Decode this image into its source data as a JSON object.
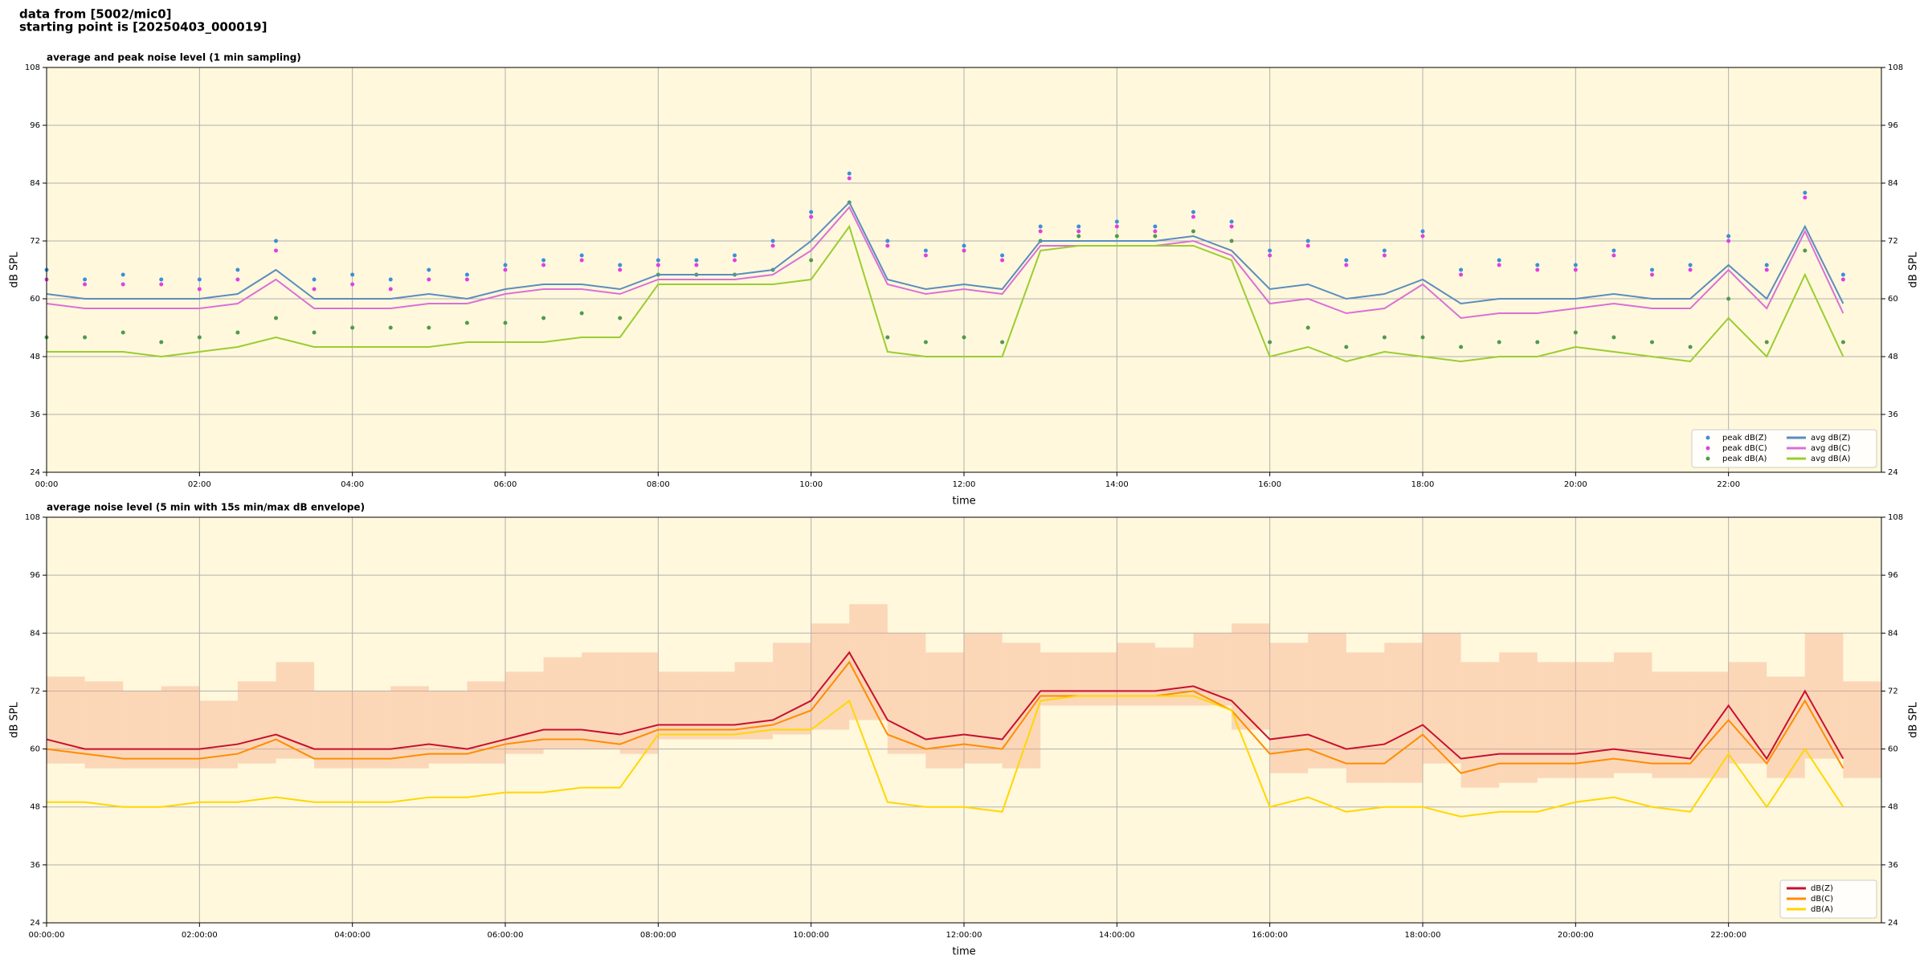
{
  "header": {
    "source": "data from [5002/mic0]",
    "start": "starting point is [20250403_000019]"
  },
  "chart_data": [
    {
      "type": "line",
      "title": "average and peak noise level (1 min sampling)",
      "xlabel": "time",
      "ylabel": "dB SPL",
      "x": [
        0,
        0.5,
        1,
        1.5,
        2,
        2.5,
        3,
        3.5,
        4,
        4.5,
        5,
        5.5,
        6,
        6.5,
        7,
        7.5,
        8,
        8.5,
        9,
        9.5,
        10,
        10.5,
        11,
        11.5,
        12,
        12.5,
        13,
        13.5,
        14,
        14.5,
        15,
        15.5,
        16,
        16.5,
        17,
        17.5,
        18,
        18.5,
        19,
        19.5,
        20,
        20.5,
        21,
        21.5,
        22,
        22.5,
        23,
        23.5
      ],
      "xlim": [
        0,
        24
      ],
      "xticks": [
        {
          "value": 0,
          "label": "00:00"
        },
        {
          "value": 2,
          "label": "02:00"
        },
        {
          "value": 4,
          "label": "04:00"
        },
        {
          "value": 6,
          "label": "06:00"
        },
        {
          "value": 8,
          "label": "08:00"
        },
        {
          "value": 10,
          "label": "10:00"
        },
        {
          "value": 12,
          "label": "12:00"
        },
        {
          "value": 14,
          "label": "14:00"
        },
        {
          "value": 16,
          "label": "16:00"
        },
        {
          "value": 18,
          "label": "18:00"
        },
        {
          "value": 20,
          "label": "20:00"
        },
        {
          "value": 22,
          "label": "22:00"
        }
      ],
      "ylim": [
        24,
        108
      ],
      "yticks": [
        24,
        36,
        48,
        60,
        72,
        84,
        96,
        108
      ],
      "grid": true,
      "legend": "lower right",
      "legend_columns": 2,
      "series": [
        {
          "name": "peak dB(Z)",
          "style": "dots",
          "color": "#3b8fd9",
          "values": [
            66,
            64,
            65,
            64,
            64,
            66,
            72,
            64,
            65,
            64,
            66,
            65,
            67,
            68,
            69,
            67,
            68,
            68,
            69,
            72,
            78,
            86,
            72,
            70,
            71,
            69,
            75,
            75,
            76,
            75,
            78,
            76,
            70,
            72,
            68,
            70,
            74,
            66,
            68,
            67,
            67,
            70,
            66,
            67,
            73,
            67,
            82,
            65
          ]
        },
        {
          "name": "peak dB(C)",
          "style": "dots",
          "color": "#e040e0",
          "values": [
            64,
            63,
            63,
            63,
            62,
            64,
            70,
            62,
            63,
            62,
            64,
            64,
            66,
            67,
            68,
            66,
            67,
            67,
            68,
            71,
            77,
            85,
            71,
            69,
            70,
            68,
            74,
            74,
            75,
            74,
            77,
            75,
            69,
            71,
            67,
            69,
            73,
            65,
            67,
            66,
            66,
            69,
            65,
            66,
            72,
            66,
            81,
            64
          ]
        },
        {
          "name": "peak dB(A)",
          "style": "dots",
          "color": "#4f9a4f",
          "values": [
            52,
            52,
            53,
            51,
            52,
            53,
            56,
            53,
            54,
            54,
            54,
            55,
            55,
            56,
            57,
            56,
            65,
            65,
            65,
            66,
            68,
            80,
            52,
            51,
            52,
            51,
            72,
            73,
            73,
            73,
            74,
            72,
            51,
            54,
            50,
            52,
            52,
            50,
            51,
            51,
            53,
            52,
            51,
            50,
            60,
            51,
            70,
            51
          ]
        },
        {
          "name": "avg dB(Z)",
          "style": "line",
          "color": "#5b8dbf",
          "values": [
            61,
            60,
            60,
            60,
            60,
            61,
            66,
            60,
            60,
            60,
            61,
            60,
            62,
            63,
            63,
            62,
            65,
            65,
            65,
            66,
            72,
            80,
            64,
            62,
            63,
            62,
            72,
            72,
            72,
            72,
            73,
            70,
            62,
            63,
            60,
            61,
            64,
            59,
            60,
            60,
            60,
            61,
            60,
            60,
            67,
            60,
            75,
            59
          ]
        },
        {
          "name": "avg dB(C)",
          "style": "line",
          "color": "#da70d6",
          "values": [
            59,
            58,
            58,
            58,
            58,
            59,
            64,
            58,
            58,
            58,
            59,
            59,
            61,
            62,
            62,
            61,
            64,
            64,
            64,
            65,
            70,
            79,
            63,
            61,
            62,
            61,
            71,
            71,
            71,
            71,
            72,
            69,
            59,
            60,
            57,
            58,
            63,
            56,
            57,
            57,
            58,
            59,
            58,
            58,
            66,
            58,
            74,
            57
          ]
        },
        {
          "name": "avg dB(A)",
          "style": "line",
          "color": "#9acd32",
          "values": [
            49,
            49,
            49,
            48,
            49,
            50,
            52,
            50,
            50,
            50,
            50,
            51,
            51,
            51,
            52,
            52,
            63,
            63,
            63,
            63,
            64,
            75,
            49,
            48,
            48,
            48,
            70,
            71,
            71,
            71,
            71,
            68,
            48,
            50,
            47,
            49,
            48,
            47,
            48,
            48,
            50,
            49,
            48,
            47,
            56,
            48,
            65,
            48
          ]
        }
      ]
    },
    {
      "type": "line",
      "title": "average noise level (5 min with 15s min/max dB envelope)",
      "xlabel": "time",
      "ylabel": "dB SPL",
      "x": [
        0,
        0.5,
        1,
        1.5,
        2,
        2.5,
        3,
        3.5,
        4,
        4.5,
        5,
        5.5,
        6,
        6.5,
        7,
        7.5,
        8,
        8.5,
        9,
        9.5,
        10,
        10.5,
        11,
        11.5,
        12,
        12.5,
        13,
        13.5,
        14,
        14.5,
        15,
        15.5,
        16,
        16.5,
        17,
        17.5,
        18,
        18.5,
        19,
        19.5,
        20,
        20.5,
        21,
        21.5,
        22,
        22.5,
        23,
        23.5
      ],
      "xlim": [
        0,
        24
      ],
      "xticks": [
        {
          "value": 0,
          "label": "00:00:00"
        },
        {
          "value": 2,
          "label": "02:00:00"
        },
        {
          "value": 4,
          "label": "04:00:00"
        },
        {
          "value": 6,
          "label": "06:00:00"
        },
        {
          "value": 8,
          "label": "08:00:00"
        },
        {
          "value": 10,
          "label": "10:00:00"
        },
        {
          "value": 12,
          "label": "12:00:00"
        },
        {
          "value": 14,
          "label": "14:00:00"
        },
        {
          "value": 16,
          "label": "16:00:00"
        },
        {
          "value": 18,
          "label": "18:00:00"
        },
        {
          "value": 20,
          "label": "20:00:00"
        },
        {
          "value": 22,
          "label": "22:00:00"
        }
      ],
      "ylim": [
        24,
        108
      ],
      "yticks": [
        24,
        36,
        48,
        60,
        72,
        84,
        96,
        108
      ],
      "grid": true,
      "legend": "lower right",
      "legend_columns": 1,
      "envelope": {
        "color": "#f4a582",
        "max": [
          75,
          74,
          72,
          73,
          70,
          74,
          78,
          72,
          72,
          73,
          72,
          74,
          76,
          79,
          80,
          80,
          76,
          76,
          78,
          82,
          86,
          90,
          84,
          80,
          84,
          82,
          80,
          80,
          82,
          81,
          84,
          86,
          82,
          84,
          80,
          82,
          84,
          78,
          80,
          78,
          78,
          80,
          76,
          76,
          78,
          75,
          84,
          74
        ],
        "min": [
          57,
          56,
          56,
          56,
          56,
          57,
          58,
          56,
          56,
          56,
          57,
          57,
          59,
          60,
          60,
          59,
          62,
          62,
          62,
          63,
          64,
          66,
          59,
          56,
          57,
          56,
          69,
          69,
          69,
          69,
          69,
          64,
          55,
          56,
          53,
          53,
          57,
          52,
          53,
          54,
          54,
          55,
          54,
          54,
          57,
          54,
          58,
          54
        ]
      },
      "series": [
        {
          "name": "dB(Z)",
          "style": "line",
          "color": "#c8102e",
          "values": [
            62,
            60,
            60,
            60,
            60,
            61,
            63,
            60,
            60,
            60,
            61,
            60,
            62,
            64,
            64,
            63,
            65,
            65,
            65,
            66,
            70,
            80,
            66,
            62,
            63,
            62,
            72,
            72,
            72,
            72,
            73,
            70,
            62,
            63,
            60,
            61,
            65,
            58,
            59,
            59,
            59,
            60,
            59,
            58,
            69,
            58,
            72,
            58
          ]
        },
        {
          "name": "dB(C)",
          "style": "line",
          "color": "#ff8c00",
          "values": [
            60,
            59,
            58,
            58,
            58,
            59,
            62,
            58,
            58,
            58,
            59,
            59,
            61,
            62,
            62,
            61,
            64,
            64,
            64,
            65,
            68,
            78,
            63,
            60,
            61,
            60,
            71,
            71,
            71,
            71,
            72,
            68,
            59,
            60,
            57,
            57,
            63,
            55,
            57,
            57,
            57,
            58,
            57,
            57,
            66,
            57,
            70,
            56
          ]
        },
        {
          "name": "dB(A)",
          "style": "line",
          "color": "#ffd700",
          "values": [
            49,
            49,
            48,
            48,
            49,
            49,
            50,
            49,
            49,
            49,
            50,
            50,
            51,
            51,
            52,
            52,
            63,
            63,
            63,
            64,
            64,
            70,
            49,
            48,
            48,
            47,
            70,
            71,
            71,
            71,
            71,
            68,
            48,
            50,
            47,
            48,
            48,
            46,
            47,
            47,
            49,
            50,
            48,
            47,
            59,
            48,
            60,
            48
          ]
        }
      ]
    }
  ]
}
